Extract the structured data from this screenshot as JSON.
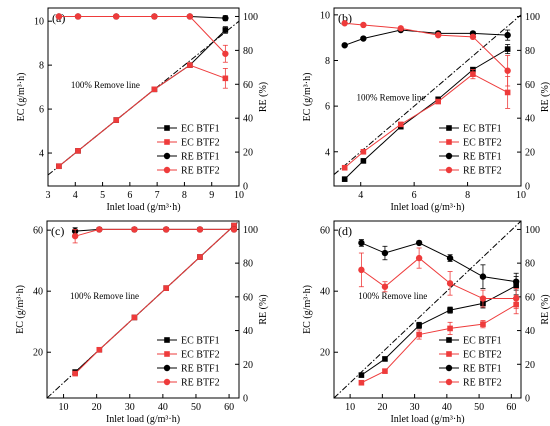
{
  "figure": {
    "y_left_label": "EC (g/m³·h)",
    "y_right_label": "RE (%)",
    "x_label": "Inlet load (g/m³·h)",
    "reference_line_label": "100% Remove line",
    "legend": [
      "EC BTF1",
      "EC BTF2",
      "RE BTF1",
      "RE BTF2"
    ],
    "colors": {
      "btf1": "#000000",
      "btf2": "#ee3b3b",
      "reference": "#000000"
    }
  },
  "chart_data": [
    {
      "panel_label": "(a)",
      "type": "line",
      "xlabel": "Inlet load (g/m³·h)",
      "ylabel": "EC (g/m³·h)",
      "y2label": "RE (%)",
      "xlim": [
        3,
        10
      ],
      "ylim": [
        2.5,
        10.6
      ],
      "y2lim": [
        0,
        105
      ],
      "xticks": [
        3,
        4,
        5,
        6,
        7,
        8,
        9,
        10
      ],
      "yticks": [
        4,
        6,
        8,
        10
      ],
      "y2ticks": [
        0,
        20,
        40,
        60,
        80,
        100
      ],
      "reference_line": "y = x",
      "legend_position": "bottom-right",
      "series": [
        {
          "name": "EC BTF1",
          "axis": "left",
          "marker": "square",
          "x": [
            3.4,
            4.1,
            5.5,
            6.9,
            8.2,
            9.5
          ],
          "y": [
            3.4,
            4.1,
            5.5,
            6.9,
            8.0,
            9.6
          ],
          "err": [
            0,
            0,
            0,
            0,
            0,
            0.15
          ]
        },
        {
          "name": "EC BTF2",
          "axis": "left",
          "marker": "square",
          "x": [
            3.4,
            4.1,
            5.5,
            6.9,
            8.2,
            9.5
          ],
          "y": [
            3.4,
            4.1,
            5.5,
            6.9,
            8.0,
            7.4
          ],
          "err": [
            0,
            0,
            0,
            0,
            0,
            0.45
          ]
        },
        {
          "name": "RE BTF1",
          "axis": "right",
          "marker": "circle",
          "x": [
            3.4,
            4.1,
            5.5,
            6.9,
            8.2,
            9.5
          ],
          "y": [
            100,
            100,
            100,
            100,
            100,
            99
          ],
          "err": [
            0,
            0,
            0,
            0,
            0,
            1.5
          ]
        },
        {
          "name": "RE BTF2",
          "axis": "right",
          "marker": "circle",
          "x": [
            3.4,
            4.1,
            5.5,
            6.9,
            8.2,
            9.5
          ],
          "y": [
            100,
            100,
            100,
            100,
            100,
            78
          ],
          "err": [
            0,
            0,
            0,
            0,
            0,
            5
          ]
        }
      ]
    },
    {
      "panel_label": "(b)",
      "type": "line",
      "xlabel": "Inlet load (g/m³·h)",
      "ylabel": "EC (g/m³·h)",
      "y2label": "RE (%)",
      "xlim": [
        3,
        10
      ],
      "ylim": [
        2.5,
        10.3
      ],
      "y2lim": [
        0,
        105
      ],
      "xticks": [
        4,
        6,
        8,
        10
      ],
      "yticks": [
        4,
        6,
        8,
        10
      ],
      "y2ticks": [
        0,
        20,
        40,
        60,
        80,
        100
      ],
      "reference_line": "y = x",
      "legend_position": "bottom-right",
      "series": [
        {
          "name": "EC BTF1",
          "axis": "left",
          "marker": "square",
          "x": [
            3.4,
            4.1,
            5.5,
            6.9,
            8.2,
            9.5
          ],
          "y": [
            2.8,
            3.6,
            5.1,
            6.3,
            7.6,
            8.5
          ],
          "err": [
            0,
            0,
            0,
            0,
            0,
            0.2
          ]
        },
        {
          "name": "EC BTF2",
          "axis": "left",
          "marker": "square",
          "x": [
            3.4,
            4.1,
            5.5,
            6.9,
            8.2,
            9.5
          ],
          "y": [
            3.3,
            4.0,
            5.2,
            6.2,
            7.4,
            6.6
          ],
          "err": [
            0,
            0,
            0,
            0,
            0.2,
            0.7
          ]
        },
        {
          "name": "RE BTF1",
          "axis": "right",
          "marker": "circle",
          "x": [
            3.4,
            4.1,
            5.5,
            6.9,
            8.2,
            9.5
          ],
          "y": [
            83,
            87,
            92,
            90,
            90,
            89
          ],
          "err": [
            0,
            0,
            0,
            0,
            0,
            3
          ]
        },
        {
          "name": "RE BTF2",
          "axis": "right",
          "marker": "circle",
          "x": [
            3.4,
            4.1,
            5.5,
            6.9,
            8.2,
            9.5
          ],
          "y": [
            96,
            95,
            93,
            89,
            88,
            68
          ],
          "err": [
            0,
            0,
            0,
            0,
            0,
            9
          ]
        }
      ]
    },
    {
      "panel_label": "(c)",
      "type": "line",
      "xlabel": "Inlet load (g/m³·h)",
      "ylabel": "EC (g/m³·h)",
      "y2label": "RE (%)",
      "xlim": [
        5,
        63
      ],
      "ylim": [
        5,
        63
      ],
      "y2lim": [
        0,
        105
      ],
      "xticks": [
        10,
        20,
        30,
        40,
        50,
        60
      ],
      "yticks": [
        20,
        40,
        60
      ],
      "y2ticks": [
        0,
        20,
        40,
        60,
        80,
        100
      ],
      "reference_line": "y = x",
      "legend_position": "bottom-right",
      "series": [
        {
          "name": "EC BTF1",
          "axis": "left",
          "marker": "square",
          "x": [
            13.5,
            20.8,
            31.4,
            41.0,
            51.2,
            61.5
          ],
          "y": [
            13.5,
            20.8,
            31.4,
            41.0,
            51.2,
            61.5
          ],
          "err": [
            0,
            0,
            0,
            0,
            0,
            0
          ]
        },
        {
          "name": "EC BTF2",
          "axis": "left",
          "marker": "square",
          "x": [
            13.5,
            20.8,
            31.4,
            41.0,
            51.2,
            61.5
          ],
          "y": [
            13.0,
            20.8,
            31.4,
            41.0,
            51.2,
            61.5
          ],
          "err": [
            0,
            0,
            0,
            0,
            0,
            0
          ]
        },
        {
          "name": "RE BTF1",
          "axis": "right",
          "marker": "circle",
          "x": [
            13.5,
            20.8,
            31.4,
            41.0,
            51.2,
            61.5
          ],
          "y": [
            99,
            100,
            100,
            100,
            100,
            100
          ],
          "err": [
            2,
            0,
            0,
            0,
            0,
            0
          ]
        },
        {
          "name": "RE BTF2",
          "axis": "right",
          "marker": "circle",
          "x": [
            13.5,
            20.8,
            31.4,
            41.0,
            51.2,
            61.5
          ],
          "y": [
            96,
            100,
            100,
            100,
            100,
            100
          ],
          "err": [
            4,
            0,
            0,
            0,
            0,
            0
          ]
        }
      ]
    },
    {
      "panel_label": "(d)",
      "type": "line",
      "xlabel": "Inlet load (g/m³·h)",
      "ylabel": "EC (g/m³·h)",
      "y2label": "RE (%)",
      "xlim": [
        5,
        63
      ],
      "ylim": [
        5,
        63
      ],
      "y2lim": [
        0,
        105
      ],
      "xticks": [
        10,
        20,
        30,
        40,
        50,
        60
      ],
      "yticks": [
        20,
        40,
        60
      ],
      "y2ticks": [
        0,
        20,
        40,
        60,
        80,
        100
      ],
      "reference_line": "y = x",
      "legend_position": "bottom-right",
      "series": [
        {
          "name": "EC BTF1",
          "axis": "left",
          "marker": "square",
          "x": [
            13.5,
            20.8,
            31.4,
            41.0,
            51.2,
            61.5
          ],
          "y": [
            12.5,
            17.8,
            28.8,
            33.8,
            36.0,
            41.8
          ],
          "err": [
            0.6,
            0.6,
            1.0,
            1.0,
            1.5,
            3.0
          ]
        },
        {
          "name": "EC BTF2",
          "axis": "left",
          "marker": "square",
          "x": [
            13.5,
            20.8,
            31.4,
            41.0,
            51.2,
            61.5
          ],
          "y": [
            10.0,
            13.8,
            25.8,
            27.8,
            29.2,
            35.6
          ],
          "err": [
            0.6,
            0.6,
            1.5,
            2.0,
            1.2,
            3.0
          ]
        },
        {
          "name": "RE BTF1",
          "axis": "right",
          "marker": "circle",
          "x": [
            13.5,
            20.8,
            31.4,
            41.0,
            51.2,
            61.5
          ],
          "y": [
            92,
            86,
            92,
            83,
            72,
            69
          ],
          "err": [
            2,
            4,
            0,
            2,
            7,
            5
          ]
        },
        {
          "name": "RE BTF2",
          "axis": "right",
          "marker": "circle",
          "x": [
            13.5,
            20.8,
            31.4,
            41.0,
            51.2,
            61.5
          ],
          "y": [
            76,
            66,
            83,
            68,
            59,
            59
          ],
          "err": [
            10,
            3,
            6,
            7,
            5,
            6
          ]
        }
      ]
    }
  ]
}
